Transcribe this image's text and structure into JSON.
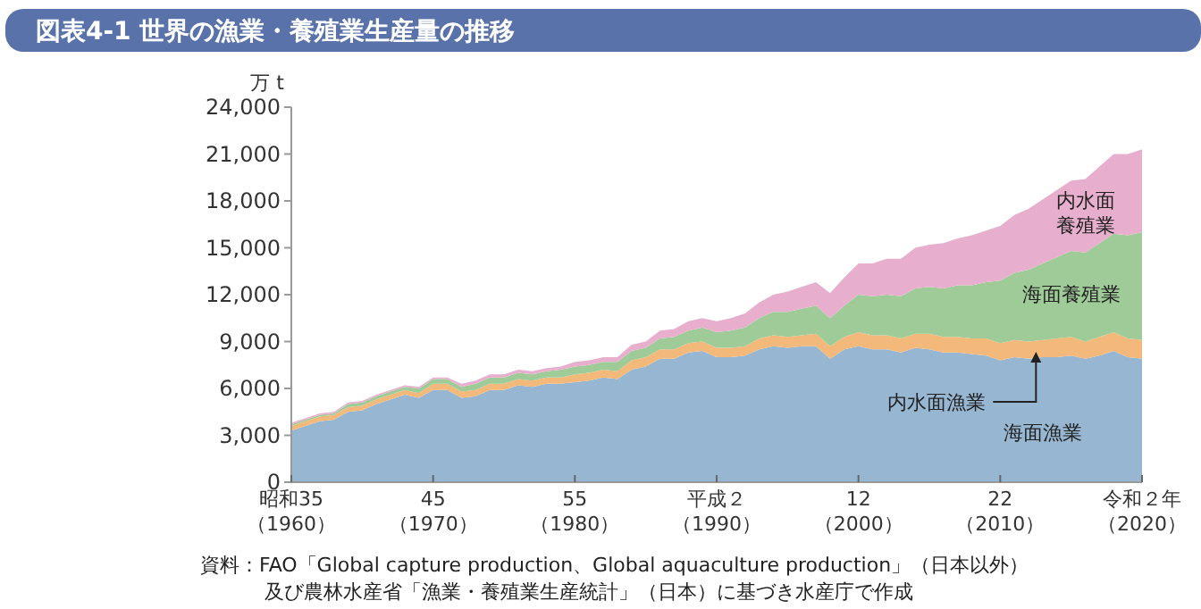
{
  "chart_data": {
    "type": "area",
    "stacked": true,
    "title": "図表4-1 世界の漁業・養殖業生産量の推移",
    "ylabel": "万 t",
    "categories": [
      "昭和35（1960）",
      null,
      null,
      null,
      null,
      null,
      null,
      null,
      null,
      null,
      "45（1970）",
      null,
      null,
      null,
      null,
      null,
      null,
      null,
      null,
      null,
      "55（1980）",
      null,
      null,
      null,
      null,
      null,
      null,
      null,
      null,
      null,
      "平成２（1990）",
      null,
      null,
      null,
      null,
      null,
      null,
      null,
      null,
      null,
      "12（2000）",
      null,
      null,
      null,
      null,
      null,
      null,
      null,
      null,
      null,
      "22（2010）",
      null,
      null,
      null,
      null,
      null,
      null,
      null,
      null,
      null,
      "令和２年（2020）"
    ],
    "ylim": [
      0,
      24000
    ],
    "yticks": [
      {
        "value": 0,
        "label": "0"
      },
      {
        "value": 3000,
        "label": "3,000"
      },
      {
        "value": 6000,
        "label": "6,000"
      },
      {
        "value": 9000,
        "label": "9,000"
      },
      {
        "value": 12000,
        "label": "12,000"
      },
      {
        "value": 15000,
        "label": "15,000"
      },
      {
        "value": 18000,
        "label": "18,000"
      },
      {
        "value": 21000,
        "label": "21,000"
      },
      {
        "value": 24000,
        "label": "24,000"
      }
    ],
    "grid": false,
    "legend": false,
    "series": [
      {
        "name": "海面漁業",
        "color": "#97b6d2",
        "values": [
          3300,
          3600,
          3900,
          4000,
          4500,
          4600,
          5000,
          5300,
          5600,
          5400,
          5900,
          5900,
          5400,
          5500,
          5900,
          5900,
          6200,
          6100,
          6300,
          6300,
          6400,
          6500,
          6700,
          6600,
          7200,
          7400,
          7900,
          7900,
          8300,
          8400,
          8000,
          8000,
          8100,
          8500,
          8700,
          8600,
          8700,
          8700,
          7900,
          8500,
          8700,
          8500,
          8500,
          8300,
          8600,
          8500,
          8300,
          8300,
          8200,
          8100,
          7800,
          8000,
          7900,
          8000,
          8000,
          8100,
          7900,
          8100,
          8400,
          8000,
          7900
        ]
      },
      {
        "name": "内水面漁業",
        "color": "#f2b97a",
        "values": [
          300,
          300,
          300,
          300,
          300,
          300,
          300,
          300,
          300,
          300,
          400,
          400,
          400,
          400,
          400,
          400,
          400,
          400,
          400,
          400,
          500,
          500,
          500,
          500,
          600,
          600,
          600,
          600,
          600,
          600,
          600,
          600,
          600,
          700,
          700,
          700,
          700,
          800,
          800,
          800,
          900,
          900,
          900,
          900,
          900,
          1000,
          1000,
          1000,
          1000,
          1100,
          1100,
          1100,
          1100,
          1100,
          1200,
          1200,
          1100,
          1200,
          1200,
          1200,
          1200
        ]
      },
      {
        "name": "海面養殖業",
        "color": "#9fcb98",
        "values": [
          100,
          100,
          100,
          100,
          200,
          200,
          200,
          200,
          200,
          300,
          300,
          300,
          300,
          400,
          400,
          400,
          400,
          400,
          400,
          500,
          500,
          500,
          500,
          600,
          600,
          600,
          700,
          800,
          800,
          900,
          1000,
          1100,
          1200,
          1300,
          1500,
          1600,
          1700,
          1800,
          1800,
          2000,
          2400,
          2500,
          2600,
          2700,
          2900,
          3000,
          3100,
          3300,
          3400,
          3600,
          4000,
          4300,
          4600,
          4900,
          5200,
          5500,
          5700,
          6000,
          6300,
          6600,
          6900
        ]
      },
      {
        "name": "内水面養殖業",
        "color": "#e7afcd",
        "values": [
          100,
          100,
          100,
          100,
          100,
          100,
          100,
          100,
          100,
          100,
          100,
          100,
          200,
          200,
          200,
          200,
          200,
          200,
          200,
          200,
          300,
          300,
          300,
          300,
          400,
          400,
          500,
          500,
          600,
          600,
          700,
          800,
          900,
          1000,
          1100,
          1300,
          1400,
          1500,
          1600,
          1800,
          2000,
          2100,
          2300,
          2400,
          2600,
          2700,
          2900,
          3000,
          3200,
          3300,
          3500,
          3700,
          3900,
          4100,
          4300,
          4500,
          4700,
          4900,
          5100,
          5200,
          5300
        ]
      }
    ],
    "annotations": [
      "資料：FAO「Global capture production、Global aquaculture production」（日本以外）及び農林水産省「漁業・養殖業生産統計」（日本）に基づき水産庁で作成"
    ]
  }
}
